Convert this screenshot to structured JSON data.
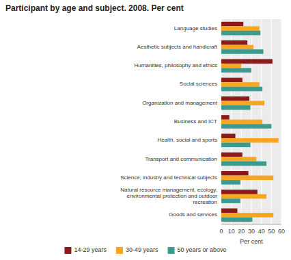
{
  "chart_data": {
    "type": "bar",
    "orientation": "horizontal",
    "title": "Participant by age and subject. 2008. Per cent",
    "x_label": "Per cent",
    "categories": [
      "Language studies",
      "Aesthetic subjects and handicraft",
      "Humanities, philosophy and ethics",
      "Social sciences",
      "Organization and management",
      "Business and ICT",
      "Health, social and sports",
      "Transport and communication",
      "Science, industry and technical subjects",
      "Natural resource management, ecology,\nenvironmental protection and outdoor\nrecreation",
      "Goods and services"
    ],
    "series": [
      {
        "name": "14-29 years",
        "color": "#8B1A1A",
        "values": [
          22,
          26,
          51,
          21,
          28,
          8,
          14,
          21,
          27,
          36,
          16
        ]
      },
      {
        "name": "30-49 years",
        "color": "#F5A623",
        "values": [
          38,
          32,
          20,
          38,
          43,
          41,
          57,
          35,
          52,
          45,
          52
        ]
      },
      {
        "name": "50 years or above",
        "color": "#3A9B8E",
        "values": [
          39,
          42,
          30,
          41,
          29,
          50,
          29,
          45,
          19,
          19,
          31
        ]
      }
    ],
    "xlim": [
      0,
      60
    ],
    "xticks": [
      0,
      10,
      20,
      30,
      40,
      50,
      60
    ],
    "grid": true,
    "legend": "bottom"
  }
}
